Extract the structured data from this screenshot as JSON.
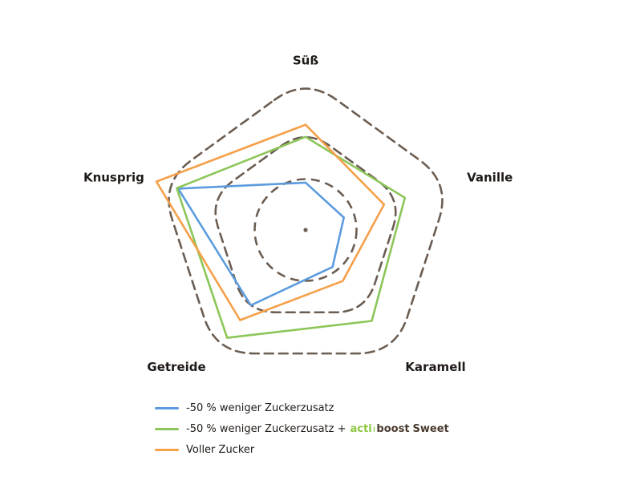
{
  "chart_data": {
    "type": "radar",
    "axes": [
      "Süß",
      "Vanille",
      "Karamell",
      "Getreide",
      "Knusprig"
    ],
    "rlim": [
      0,
      3
    ],
    "rings": [
      1,
      2,
      3
    ],
    "grid": true,
    "legend_position": "bottom",
    "series": [
      {
        "name": "-50 % weniger Zuckerzusatz",
        "color": "#5b9bde",
        "values": [
          0.93,
          0.79,
          0.9,
          1.83,
          2.63
        ]
      },
      {
        "name": "-50 % weniger Zuckerzusatz + actiboost Sweet",
        "color": "#8cc658",
        "values": [
          1.83,
          2.05,
          2.21,
          2.62,
          2.66
        ]
      },
      {
        "name": "Voller Zucker",
        "color": "#f5a04a",
        "values": [
          2.07,
          1.62,
          1.24,
          2.19,
          3.08
        ]
      }
    ]
  },
  "legend": {
    "items": [
      {
        "text": "-50 % weniger Zuckerzusatz"
      },
      {
        "text": "-50 % weniger Zuckerzusatz +",
        "brand": {
          "acti": "acti",
          "mark": "≀",
          "boost": "boost",
          "sweet": "Sweet"
        }
      },
      {
        "text": "Voller Zucker"
      }
    ]
  },
  "grid_color": "#6b5d52",
  "center_dot_color": "#6b5d52"
}
